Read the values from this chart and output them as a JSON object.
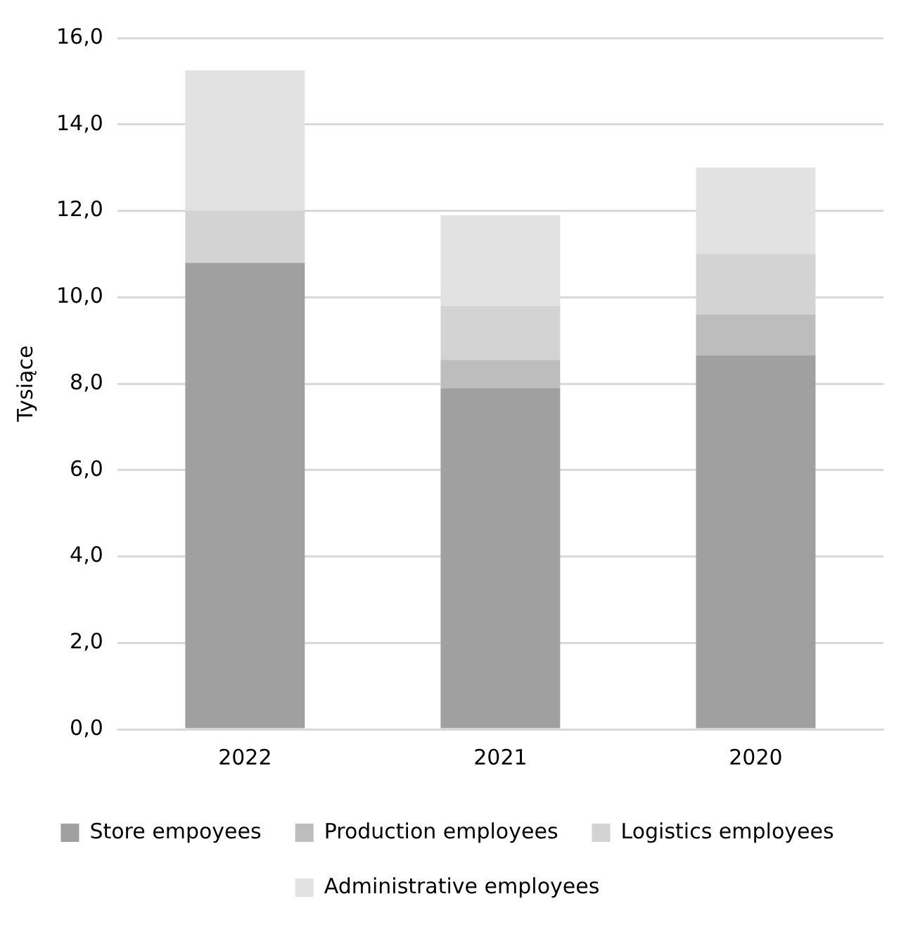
{
  "chart_data": {
    "type": "bar",
    "stacked": true,
    "ylabel": "Tysiące",
    "categories": [
      "2022",
      "2021",
      "2020"
    ],
    "series": [
      {
        "name": "Store empoyees",
        "color": "#a0a0a0",
        "values": [
          10.8,
          7.9,
          8.65
        ]
      },
      {
        "name": "Production employees",
        "color": "#bdbdbd",
        "values": [
          0,
          0.65,
          0.95
        ]
      },
      {
        "name": "Logistics employees",
        "color": "#d3d3d3",
        "values": [
          1.2,
          1.25,
          1.4
        ]
      },
      {
        "name": "Administrative employees",
        "color": "#e2e2e2",
        "values": [
          3.25,
          2.1,
          2.0
        ]
      }
    ],
    "ylim": [
      0,
      16
    ],
    "yticks": [
      {
        "value": 0,
        "label": "0,0"
      },
      {
        "value": 2,
        "label": "2,0"
      },
      {
        "value": 4,
        "label": "4,0"
      },
      {
        "value": 6,
        "label": "6,0"
      },
      {
        "value": 8,
        "label": "8,0"
      },
      {
        "value": 10,
        "label": "10,0"
      },
      {
        "value": 12,
        "label": "12,0"
      },
      {
        "value": 14,
        "label": "14,0"
      },
      {
        "value": 16,
        "label": "16,0"
      }
    ],
    "grid": "y",
    "legend": "bottom"
  }
}
